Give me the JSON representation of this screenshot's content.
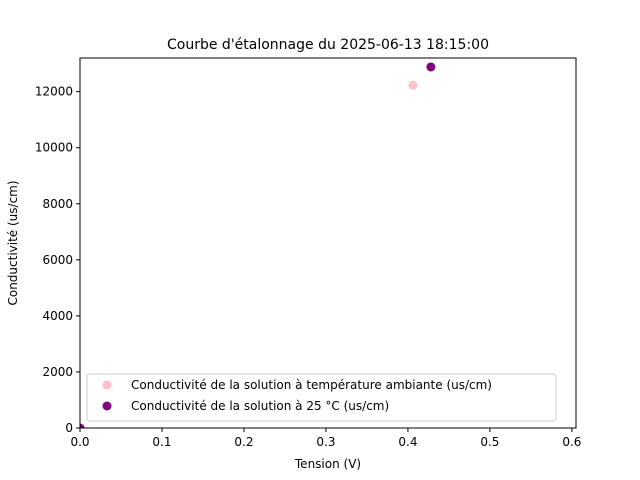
{
  "chart_data": {
    "type": "scatter",
    "title": "Courbe d'étalonnage du 2025-06-13 18:15:00",
    "xlabel": "Tension (V)",
    "ylabel": "Conductivité (us/cm)",
    "xlim": [
      0,
      0.605
    ],
    "ylim": [
      0,
      13200
    ],
    "x_ticks": [
      0.0,
      0.1,
      0.2,
      0.3,
      0.4,
      0.5,
      0.6
    ],
    "x_tick_labels": [
      "0.0",
      "0.1",
      "0.2",
      "0.3",
      "0.4",
      "0.5",
      "0.6"
    ],
    "y_ticks": [
      0,
      2000,
      4000,
      6000,
      8000,
      10000,
      12000
    ],
    "y_tick_labels": [
      "0",
      "2000",
      "4000",
      "6000",
      "8000",
      "10000",
      "12000"
    ],
    "grid": false,
    "legend_position": "lower-left",
    "series": [
      {
        "name": "Conductivité de la solution à température ambiante (us/cm)",
        "color": "#ffc0cb",
        "x": [
          0.0,
          0.406
        ],
        "y": [
          0,
          12230
        ]
      },
      {
        "name": "Conductivité de la solution à 25 °C (us/cm)",
        "color": "#800080",
        "x": [
          0.0,
          0.428
        ],
        "y": [
          0,
          12880
        ]
      }
    ]
  }
}
